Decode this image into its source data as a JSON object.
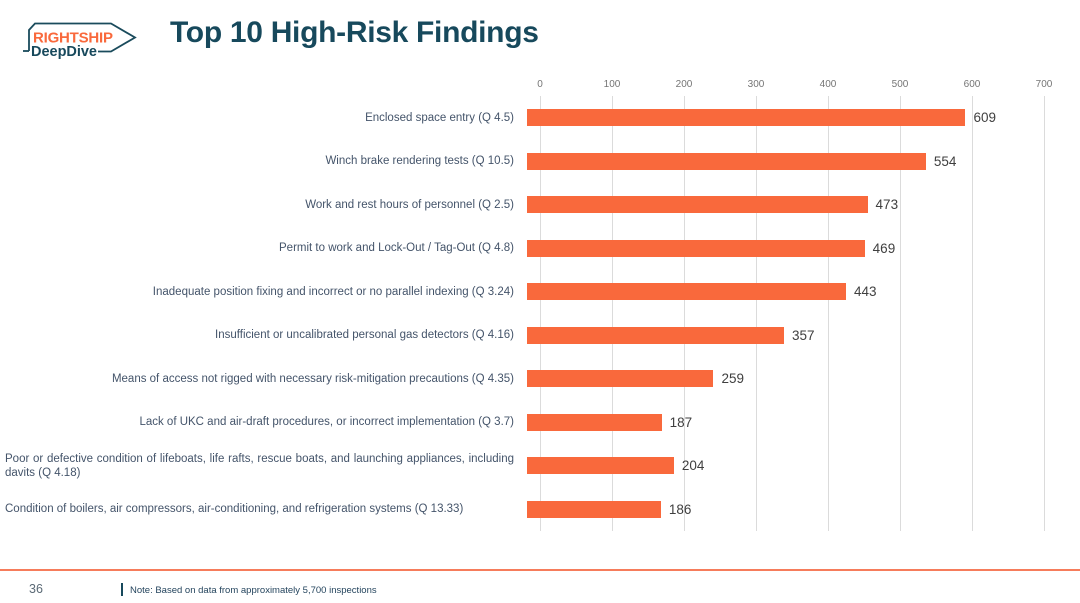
{
  "logo": {
    "brand": "RIGHTSHIP",
    "product": "DeepDive"
  },
  "header": {
    "title": "Top 10 High-Risk Findings"
  },
  "chart_data": {
    "type": "bar",
    "orientation": "horizontal",
    "title": "Top 10 High-Risk Findings",
    "xlabel": "",
    "ylabel": "",
    "xlim": [
      0,
      700
    ],
    "x_ticks": [
      0,
      100,
      200,
      300,
      400,
      500,
      600,
      700
    ],
    "grid": "vertical-gridlines-on",
    "legend": "none",
    "bar_color": "#F9693C",
    "value_labels_shown": true,
    "categories": [
      "Enclosed space entry (Q 4.5)",
      "Winch brake rendering tests (Q 10.5)",
      "Work and rest hours of personnel (Q 2.5)",
      "Permit to work and Lock-Out / Tag-Out (Q 4.8)",
      "Inadequate position fixing and incorrect or no parallel indexing (Q 3.24)",
      "Insufficient or uncalibrated personal gas detectors (Q 4.16)",
      "Means of access not rigged with necessary risk-mitigation precautions (Q 4.35)",
      "Lack of UKC and air-draft procedures, or incorrect implementation (Q 3.7)",
      "Poor or defective condition of lifeboats, life rafts, rescue boats, and launching appliances, including davits (Q 4.18)",
      "Condition of boilers, air compressors, air-conditioning, and refrigeration systems (Q 13.33)"
    ],
    "values": [
      609,
      554,
      473,
      469,
      443,
      357,
      259,
      187,
      204,
      186
    ]
  },
  "footer": {
    "page_number": "36",
    "note": "Note: Based on data from approximately 5,700 inspections"
  },
  "colors": {
    "accent_orange": "#F9693C",
    "footer_line_orange": "#F67C5B",
    "title_teal": "#17495C",
    "label_slate": "#44546A",
    "tick_gray": "#757575",
    "gridline_gray": "#DBDBDB"
  }
}
